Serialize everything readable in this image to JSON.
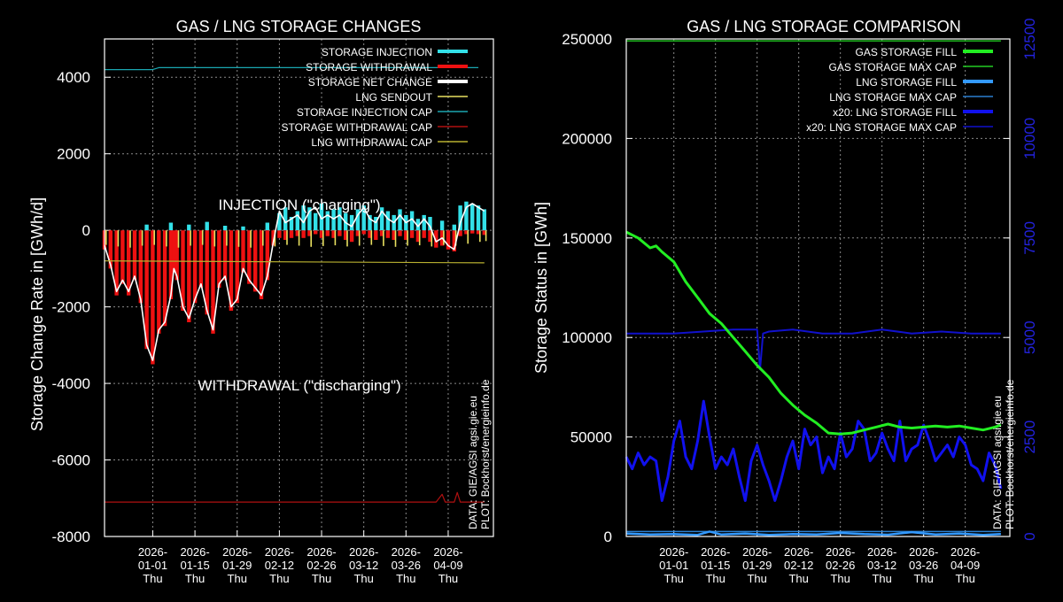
{
  "colors": {
    "background": "#000000",
    "frame": "#ffffff",
    "grid": "#8a8a8a",
    "injection": "#33e0e8",
    "withdrawal": "#ee1111",
    "net_change": "#ffffff",
    "lng_sendout": "#e8e060",
    "injection_cap": "#1aa6b0",
    "withdrawal_cap": "#b01010",
    "lng_withdrawal_cap": "#b8b030",
    "gas_fill": "#22ee22",
    "gas_max_cap": "#22cc22",
    "lng_fill": "#3399ff",
    "lng_max_cap": "#2a7fd0",
    "lng_fill_x20": "#1111ee",
    "lng_max_cap_x20": "#1111cc",
    "right_axis": "#2222dd"
  },
  "x_ticks": [
    {
      "date": "2026-",
      "md": "01-01",
      "dow": "Thu"
    },
    {
      "date": "2026-",
      "md": "01-15",
      "dow": "Thu"
    },
    {
      "date": "2026-",
      "md": "01-29",
      "dow": "Thu"
    },
    {
      "date": "2026-",
      "md": "02-12",
      "dow": "Thu"
    },
    {
      "date": "2026-",
      "md": "02-26",
      "dow": "Thu"
    },
    {
      "date": "2026-",
      "md": "03-12",
      "dow": "Thu"
    },
    {
      "date": "2026-",
      "md": "03-26",
      "dow": "Thu"
    },
    {
      "date": "2026-",
      "md": "04-09",
      "dow": "Thu"
    }
  ],
  "chart_data": [
    {
      "type": "bar",
      "title": "GAS / LNG STORAGE CHANGES",
      "ylabel": "Storage Change Rate in [GWh/d]",
      "xlabel": "",
      "ylim": [
        -8000,
        5000
      ],
      "yticks": [
        "4000",
        "2000",
        "0",
        "-2000",
        "-4000",
        "-6000",
        "-8000"
      ],
      "grid": true,
      "legend_position": "top-right",
      "legend": [
        {
          "label": "STORAGE INJECTION",
          "key": "injection"
        },
        {
          "label": "STORAGE WITHDRAWAL",
          "key": "withdrawal"
        },
        {
          "label": "STORAGE NET CHANGE",
          "key": "net_change"
        },
        {
          "label": "LNG SENDOUT",
          "key": "lng_sendout"
        },
        {
          "label": "STORAGE INJECTION CAP",
          "key": "injection_cap"
        },
        {
          "label": "STORAGE WITHDRAWAL CAP",
          "key": "withdrawal_cap"
        },
        {
          "label": "LNG WITHDRAWAL CAP",
          "key": "lng_withdrawal_cap"
        }
      ],
      "annotations": {
        "injection_label": "INJECTION (\"charging\")",
        "withdrawal_label": "WITHDRAWAL (\"discharging\")",
        "credit": "DATA: GIE/AGSI agsi.gie.eu PLOT: Bockhorst/energieinfo.de",
        "credit_line1": "DATA: GIE/AGSI agsi.gie.eu",
        "credit_line2": "PLOT: Bockhorst/energieinfo.de"
      },
      "x_day_range": [
        -16,
        113
      ],
      "series": [
        {
          "name": "STORAGE NET CHANGE",
          "key": "net_change",
          "x": [
            -16,
            -14,
            -12,
            -10,
            -8,
            -6,
            -4,
            -2,
            0,
            2,
            4,
            6,
            7,
            8,
            10,
            12,
            14,
            16,
            18,
            20,
            22,
            24,
            26,
            28,
            30,
            32,
            34,
            36,
            38,
            40,
            42,
            44,
            46,
            48,
            50,
            52,
            54,
            56,
            58,
            60,
            62,
            64,
            66,
            68,
            70,
            72,
            74,
            76,
            78,
            80,
            82,
            84,
            86,
            88,
            90,
            92,
            94,
            96,
            98,
            100,
            102,
            104,
            106,
            108,
            110
          ],
          "values": [
            -400,
            -900,
            -1600,
            -1300,
            -1600,
            -1200,
            -1800,
            -3000,
            -3400,
            -2600,
            -2400,
            -1700,
            -1000,
            -1200,
            -2000,
            -2300,
            -1800,
            -1400,
            -2100,
            -2600,
            -1400,
            -1200,
            -2000,
            -1800,
            -1000,
            -1300,
            -1500,
            -1700,
            -1200,
            -300,
            500,
            200,
            300,
            400,
            200,
            500,
            600,
            300,
            400,
            300,
            400,
            200,
            100,
            400,
            600,
            300,
            200,
            500,
            300,
            200,
            400,
            200,
            300,
            100,
            300,
            100,
            -300,
            -200,
            -400,
            -500,
            200,
            600,
            700,
            600,
            500
          ]
        },
        {
          "name": "STORAGE INJECTION",
          "key": "injection",
          "x": [
            -2,
            6,
            12,
            18,
            24,
            30,
            38,
            42,
            44,
            46,
            48,
            50,
            52,
            54,
            56,
            58,
            60,
            62,
            64,
            66,
            68,
            70,
            72,
            74,
            76,
            78,
            80,
            82,
            84,
            86,
            88,
            90,
            92,
            96,
            100,
            102,
            104,
            106,
            108,
            110
          ],
          "values": [
            150,
            200,
            150,
            220,
            120,
            100,
            200,
            450,
            600,
            350,
            500,
            650,
            600,
            450,
            700,
            500,
            550,
            600,
            450,
            400,
            550,
            650,
            400,
            350,
            600,
            500,
            400,
            550,
            400,
            500,
            300,
            400,
            350,
            250,
            150,
            650,
            750,
            700,
            650,
            550
          ]
        },
        {
          "name": "STORAGE WITHDRAWAL",
          "key": "withdrawal",
          "x": [
            -16,
            -14,
            -12,
            -10,
            -8,
            -6,
            -4,
            -2,
            0,
            2,
            4,
            6,
            7,
            8,
            10,
            12,
            14,
            16,
            18,
            20,
            22,
            24,
            26,
            28,
            30,
            32,
            34,
            36,
            38,
            40,
            42,
            44,
            46,
            48,
            50,
            52,
            54,
            56,
            58,
            60,
            62,
            64,
            66,
            68,
            70,
            72,
            74,
            76,
            78,
            80,
            82,
            84,
            86,
            88,
            90,
            92,
            94,
            96,
            98,
            100,
            102,
            104,
            106,
            108,
            110
          ],
          "values": [
            -500,
            -1000,
            -1700,
            -1400,
            -1700,
            -1300,
            -1900,
            -3100,
            -3500,
            -2700,
            -2500,
            -1800,
            -1100,
            -1300,
            -2100,
            -2400,
            -1900,
            -1500,
            -2200,
            -2700,
            -1500,
            -1300,
            -2100,
            -1900,
            -1100,
            -1400,
            -1600,
            -1800,
            -1300,
            -400,
            -200,
            -250,
            -200,
            -150,
            -200,
            -150,
            -100,
            -200,
            -150,
            -200,
            -150,
            -250,
            -300,
            -150,
            -100,
            -200,
            -250,
            -150,
            -200,
            -250,
            -150,
            -250,
            -200,
            -300,
            -200,
            -300,
            -450,
            -400,
            -500,
            -550,
            -150,
            -100,
            -80,
            -100,
            -120
          ]
        },
        {
          "name": "LNG SENDOUT",
          "key": "lng_sendout",
          "x": [
            -16,
            -12,
            -8,
            -4,
            0,
            4,
            8,
            12,
            16,
            20,
            24,
            28,
            32,
            36,
            40,
            44,
            48,
            52,
            56,
            60,
            64,
            68,
            72,
            76,
            80,
            84,
            88,
            92,
            96,
            100,
            104,
            108,
            110
          ],
          "values": [
            -380,
            -420,
            -450,
            -400,
            -380,
            -420,
            -450,
            -400,
            -380,
            -420,
            -400,
            -430,
            -450,
            -400,
            -420,
            -380,
            -400,
            -430,
            -410,
            -390,
            -420,
            -400,
            -380,
            -410,
            -430,
            -400,
            -390,
            -420,
            -380,
            -400,
            -350,
            -300,
            -280
          ]
        },
        {
          "name": "STORAGE INJECTION CAP",
          "key": "injection_cap",
          "x": [
            -16,
            0,
            2,
            20,
            60,
            75,
            108
          ],
          "values": [
            4200,
            4200,
            4250,
            4250,
            4250,
            4250,
            4250
          ]
        },
        {
          "name": "STORAGE WITHDRAWAL CAP",
          "key": "withdrawal_cap",
          "x": [
            -16,
            94,
            95,
            96,
            97,
            100,
            101,
            102,
            110
          ],
          "values": [
            -7100,
            -7100,
            -7000,
            -6900,
            -7100,
            -7100,
            -6850,
            -7100,
            -7100
          ]
        },
        {
          "name": "LNG WITHDRAWAL CAP",
          "key": "lng_withdrawal_cap",
          "x": [
            -16,
            110
          ],
          "values": [
            -800,
            -850
          ]
        }
      ]
    },
    {
      "type": "line",
      "title": "GAS / LNG STORAGE COMPARISON",
      "ylabel": "Storage Status in [GWh]",
      "xlabel": "",
      "ylim": [
        0,
        250000
      ],
      "yticks": [
        "250000",
        "200000",
        "150000",
        "100000",
        "50000",
        "0"
      ],
      "y2lim": [
        0,
        12500
      ],
      "y2ticks": [
        "12500",
        "10000",
        "7500",
        "5000",
        "2500",
        "0"
      ],
      "grid": true,
      "legend_position": "top-right",
      "legend": [
        {
          "label": "GAS STORAGE FILL",
          "key": "gas_fill"
        },
        {
          "label": "GAS STORAGE MAX CAP",
          "key": "gas_max_cap"
        },
        {
          "label": "LNG STORAGE FILL",
          "key": "lng_fill"
        },
        {
          "label": "LNG STORAGE MAX CAP",
          "key": "lng_max_cap"
        },
        {
          "label": "x20: LNG STORAGE FILL",
          "key": "lng_fill_x20"
        },
        {
          "label": "x20: LNG STORAGE MAX CAP",
          "key": "lng_max_cap_x20"
        }
      ],
      "annotations": {
        "credit_line1": "DATA: GIE/AGSI agsi.gie.eu",
        "credit_line2": "PLOT: Bockhorst/energieinfo.de"
      },
      "x_day_range": [
        -16,
        113
      ],
      "series": [
        {
          "name": "GAS STORAGE FILL",
          "key": "gas_fill",
          "axis": "y",
          "x": [
            -16,
            -12,
            -8,
            -6,
            -4,
            0,
            4,
            8,
            12,
            16,
            20,
            24,
            28,
            32,
            36,
            40,
            44,
            48,
            52,
            56,
            60,
            64,
            68,
            72,
            76,
            80,
            84,
            88,
            92,
            96,
            100,
            104,
            108,
            110
          ],
          "values": [
            153000,
            150000,
            145000,
            146000,
            143000,
            138000,
            128000,
            120000,
            112000,
            107000,
            100000,
            93000,
            86000,
            80000,
            72000,
            66000,
            61000,
            57000,
            52000,
            51500,
            52000,
            53500,
            55000,
            56500,
            55000,
            54500,
            55000,
            55500,
            55000,
            55500,
            54500,
            53500,
            55000,
            56000
          ]
        },
        {
          "name": "GAS STORAGE MAX CAP",
          "key": "gas_max_cap",
          "axis": "y",
          "x": [
            -16,
            110
          ],
          "values": [
            249000,
            249000
          ]
        },
        {
          "name": "LNG STORAGE FILL",
          "key": "lng_fill",
          "axis": "y",
          "x": [
            -16,
            -8,
            0,
            8,
            12,
            16,
            24,
            32,
            40,
            48,
            56,
            64,
            72,
            80,
            88,
            96,
            104,
            110
          ],
          "values": [
            1500,
            1000,
            1200,
            800,
            2500,
            1000,
            1500,
            800,
            1200,
            1000,
            1800,
            1200,
            900,
            2200,
            1000,
            1500,
            800,
            1200
          ]
        },
        {
          "name": "LNG STORAGE MAX CAP",
          "key": "lng_max_cap",
          "axis": "y",
          "x": [
            -16,
            110
          ],
          "values": [
            2500,
            2500
          ]
        },
        {
          "name": "x20: LNG STORAGE FILL",
          "key": "lng_fill_x20",
          "axis": "y2",
          "x": [
            -16,
            -14,
            -12,
            -10,
            -8,
            -6,
            -4,
            -2,
            0,
            2,
            4,
            6,
            8,
            10,
            12,
            14,
            16,
            18,
            20,
            22,
            24,
            26,
            28,
            30,
            32,
            34,
            36,
            38,
            40,
            42,
            44,
            46,
            48,
            50,
            52,
            54,
            56,
            58,
            60,
            62,
            64,
            66,
            68,
            70,
            72,
            74,
            76,
            78,
            80,
            82,
            84,
            86,
            88,
            90,
            92,
            94,
            96,
            98,
            100,
            102,
            104,
            106,
            108,
            110
          ],
          "values": [
            2000,
            1700,
            2100,
            1800,
            2000,
            1900,
            900,
            1500,
            2400,
            2900,
            2000,
            1700,
            2400,
            3400,
            2500,
            1700,
            2000,
            1800,
            2200,
            1500,
            900,
            1900,
            2300,
            1800,
            1400,
            900,
            1400,
            2000,
            2400,
            1700,
            2700,
            2300,
            2500,
            1600,
            2000,
            1700,
            2600,
            2000,
            2200,
            2900,
            2700,
            1900,
            2100,
            2600,
            2200,
            1900,
            2900,
            1900,
            2200,
            2300,
            2800,
            2400,
            1900,
            2100,
            2300,
            2000,
            2500,
            2300,
            1800,
            1700,
            1400,
            2100,
            1800,
            1200
          ]
        },
        {
          "name": "x20: LNG STORAGE MAX CAP",
          "key": "lng_max_cap_x20",
          "axis": "y2",
          "x": [
            -16,
            0,
            10,
            20,
            28,
            29,
            30,
            32,
            40,
            50,
            60,
            70,
            80,
            90,
            100,
            110
          ],
          "values": [
            5100,
            5100,
            5150,
            5200,
            5200,
            4200,
            5100,
            5150,
            5200,
            5100,
            5100,
            5200,
            5100,
            5150,
            5100,
            5100
          ]
        }
      ]
    }
  ]
}
